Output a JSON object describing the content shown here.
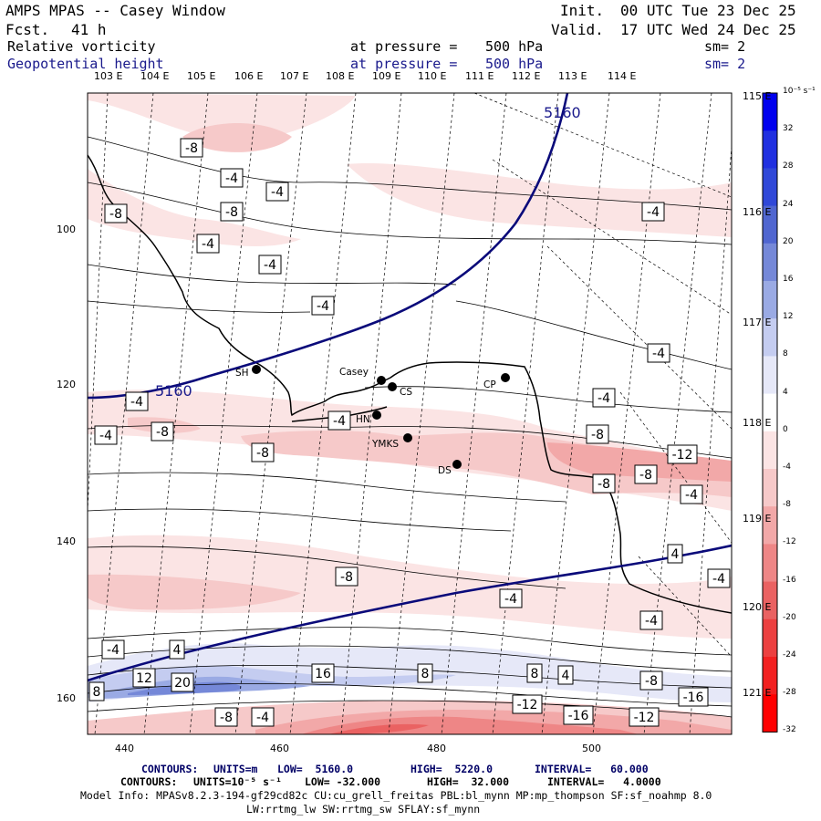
{
  "header": {
    "title": "AMPS MPAS -- Casey Window",
    "fcst_label": "Fcst.",
    "fcst_value": "41 h",
    "init_label": "Init.",
    "init_value": "00 UTC Tue 23 Dec 25",
    "valid_label": "Valid.",
    "valid_value": "17 UTC Wed 24 Dec 25",
    "field1": {
      "name": "Relative vorticity",
      "pressure_label": "at pressure =",
      "pressure_value": "500 hPa",
      "sm": "sm= 2"
    },
    "field2": {
      "name": "Geopotential height",
      "pressure_label": "at pressure =",
      "pressure_value": "500 hPa",
      "sm": "sm= 2"
    }
  },
  "axes": {
    "top_lon_labels": [
      "103 E",
      "104 E",
      "105 E",
      "106 E",
      "107 E",
      "108 E",
      "109 E",
      "110 E",
      "111 E",
      "112 E",
      "113 E",
      "114 E"
    ],
    "right_lon_labels": [
      "115 E",
      "116 E",
      "117 E",
      "118 E",
      "119 E",
      "120 E",
      "121 E"
    ],
    "x_ticks": [
      "440",
      "460",
      "480",
      "500"
    ],
    "y_ticks": [
      "100",
      "120",
      "140",
      "160"
    ]
  },
  "stations": [
    {
      "name": "SH",
      "label": "SH"
    },
    {
      "name": "Casey",
      "label": "Casey"
    },
    {
      "name": "CS",
      "label": "CS"
    },
    {
      "name": "CP",
      "label": "CP"
    },
    {
      "name": "HN",
      "label": "HN"
    },
    {
      "name": "YMKS",
      "label": "YMKS"
    },
    {
      "name": "DS",
      "label": "DS"
    }
  ],
  "height_contour_label": "5160",
  "vorticity_labels": [
    "-8",
    "-4",
    "-4",
    "-8",
    "-8",
    "-4",
    "-4",
    "-4",
    "-4",
    "-4",
    "-4",
    "-4",
    "-8",
    "-4",
    "-8",
    "-4",
    "-8",
    "-12",
    "-8",
    "-8",
    "-4",
    "4",
    "-8",
    "-4",
    "-4",
    "-4",
    "-4",
    "4",
    "12",
    "20",
    "16",
    "8",
    "8",
    "4",
    "-8",
    "-12",
    "-16",
    "-12",
    "-16",
    "8",
    "-8",
    "-4"
  ],
  "colorbar": {
    "units": "10⁻⁵ s⁻¹",
    "labels": [
      "32",
      "28",
      "24",
      "20",
      "16",
      "12",
      "8",
      "4",
      "0",
      "-4",
      "-8",
      "-12",
      "-16",
      "-20",
      "-24",
      "-28",
      "-32"
    ],
    "colors": [
      "#0000ee",
      "#2030e0",
      "#3048d8",
      "#5066d0",
      "#7588d8",
      "#9aaae4",
      "#c4ccf0",
      "#e6e8f8",
      "#ffffff",
      "#fbe4e4",
      "#f6c9c9",
      "#f2a8a8",
      "#ee8686",
      "#ea6262",
      "#ec4040",
      "#f22020",
      "#ff0000"
    ]
  },
  "footer": {
    "line1": {
      "label": "CONTOURS:",
      "units": "UNITS=m",
      "low": "LOW=  5160.0",
      "high": "HIGH=  5220.0",
      "interval": "INTERVAL=   60.000"
    },
    "line2": {
      "label": "CONTOURS:",
      "units": "UNITS=10⁻⁵ s⁻¹",
      "low": "LOW= -32.000",
      "high": "HIGH=  32.000",
      "interval": "INTERVAL=   4.0000"
    },
    "model_info": "Model Info: MPASv8.2.3-194-gf29cd82c CU:cu_grell_freitas PBL:bl_mynn MP:mp_thompson SF:sf_noahmp 8.0",
    "model_info2": "LW:rrtmg_lw SW:rrtmg_sw SFLAY:sf_mynn"
  }
}
